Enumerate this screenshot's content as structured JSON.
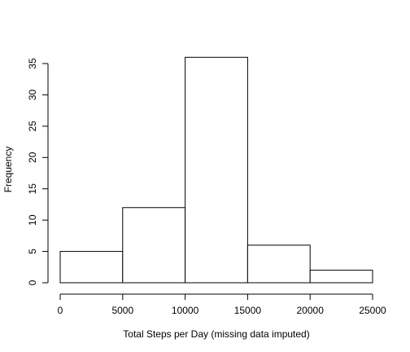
{
  "chart_data": {
    "type": "bar",
    "subtype": "histogram",
    "xlabel": "Total Steps per Day (missing data imputed)",
    "ylabel": "Frequency",
    "bins": [
      {
        "from": 0,
        "to": 5000,
        "count": 5
      },
      {
        "from": 5000,
        "to": 10000,
        "count": 12
      },
      {
        "from": 10000,
        "to": 15000,
        "count": 36
      },
      {
        "from": 15000,
        "to": 20000,
        "count": 6
      },
      {
        "from": 20000,
        "to": 25000,
        "count": 2
      }
    ],
    "xlim": [
      0,
      25000
    ],
    "ylim": [
      0,
      35
    ],
    "xticks": [
      0,
      5000,
      10000,
      15000,
      20000,
      25000
    ],
    "yticks": [
      0,
      5,
      10,
      15,
      20,
      25,
      30,
      35
    ],
    "grid": false,
    "legend": "none",
    "bar_fill": "#ffffff",
    "bar_stroke": "#000000"
  }
}
